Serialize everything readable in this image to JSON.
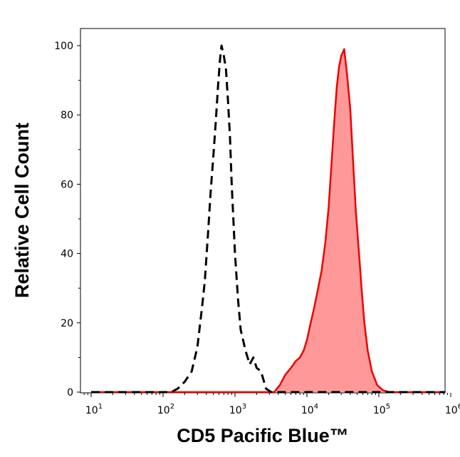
{
  "chart_data": {
    "type": "area",
    "xlabel": "CD5 Pacific Blue™",
    "ylabel": "Relative Cell Count",
    "xscale": "log",
    "xlim": [
      10,
      1000000
    ],
    "ylim": [
      0,
      105
    ],
    "x_ticks": [
      {
        "base": "10",
        "exp": "1",
        "value": 10
      },
      {
        "base": "10",
        "exp": "2",
        "value": 100
      },
      {
        "base": "10",
        "exp": "3",
        "value": 1000
      },
      {
        "base": "10",
        "exp": "4",
        "value": 10000
      },
      {
        "base": "10",
        "exp": "5",
        "value": 100000
      },
      {
        "base": "10",
        "exp": "6",
        "value": 1000000
      }
    ],
    "y_ticks": [
      {
        "label": "0",
        "value": 0
      },
      {
        "label": "20",
        "value": 20
      },
      {
        "label": "40",
        "value": 40
      },
      {
        "label": "60",
        "value": 60
      },
      {
        "label": "80",
        "value": 80
      },
      {
        "label": "100",
        "value": 100
      }
    ],
    "grid": false,
    "series": [
      {
        "style": "dashed-outline",
        "color": "#000000",
        "x": [
          10,
          130,
          160,
          200,
          250,
          300,
          350,
          380,
          420,
          460,
          500,
          540,
          580,
          620,
          650,
          700,
          750,
          800,
          850,
          900,
          1000,
          1100,
          1200,
          1400,
          1600,
          1800,
          2000,
          2300,
          2700,
          3200,
          1000000
        ],
        "y": [
          0,
          0,
          1,
          3,
          6,
          13,
          25,
          32,
          45,
          58,
          68,
          78,
          88,
          96,
          100,
          97,
          93,
          84,
          74,
          60,
          40,
          27,
          18,
          12,
          8,
          10,
          7,
          6,
          1,
          0,
          0
        ]
      },
      {
        "style": "filled",
        "color": "#ee0000",
        "fill": "#ff9999",
        "x": [
          10,
          3500,
          4200,
          5000,
          6000,
          7000,
          8000,
          9000,
          10000,
          11000,
          12500,
          14000,
          16000,
          18000,
          20000,
          22000,
          24000,
          26000,
          28000,
          30000,
          33000,
          36000,
          40000,
          44000,
          48000,
          53000,
          58000,
          63000,
          70000,
          80000,
          95000,
          115000,
          140000,
          1000000
        ],
        "y": [
          0,
          0,
          2,
          5,
          7,
          9,
          10,
          12,
          15,
          19,
          24,
          29,
          35,
          43,
          53,
          66,
          78,
          88,
          94,
          97,
          99,
          92,
          82,
          66,
          52,
          40,
          29,
          20,
          12,
          6,
          2,
          0.5,
          0,
          0
        ]
      }
    ]
  }
}
